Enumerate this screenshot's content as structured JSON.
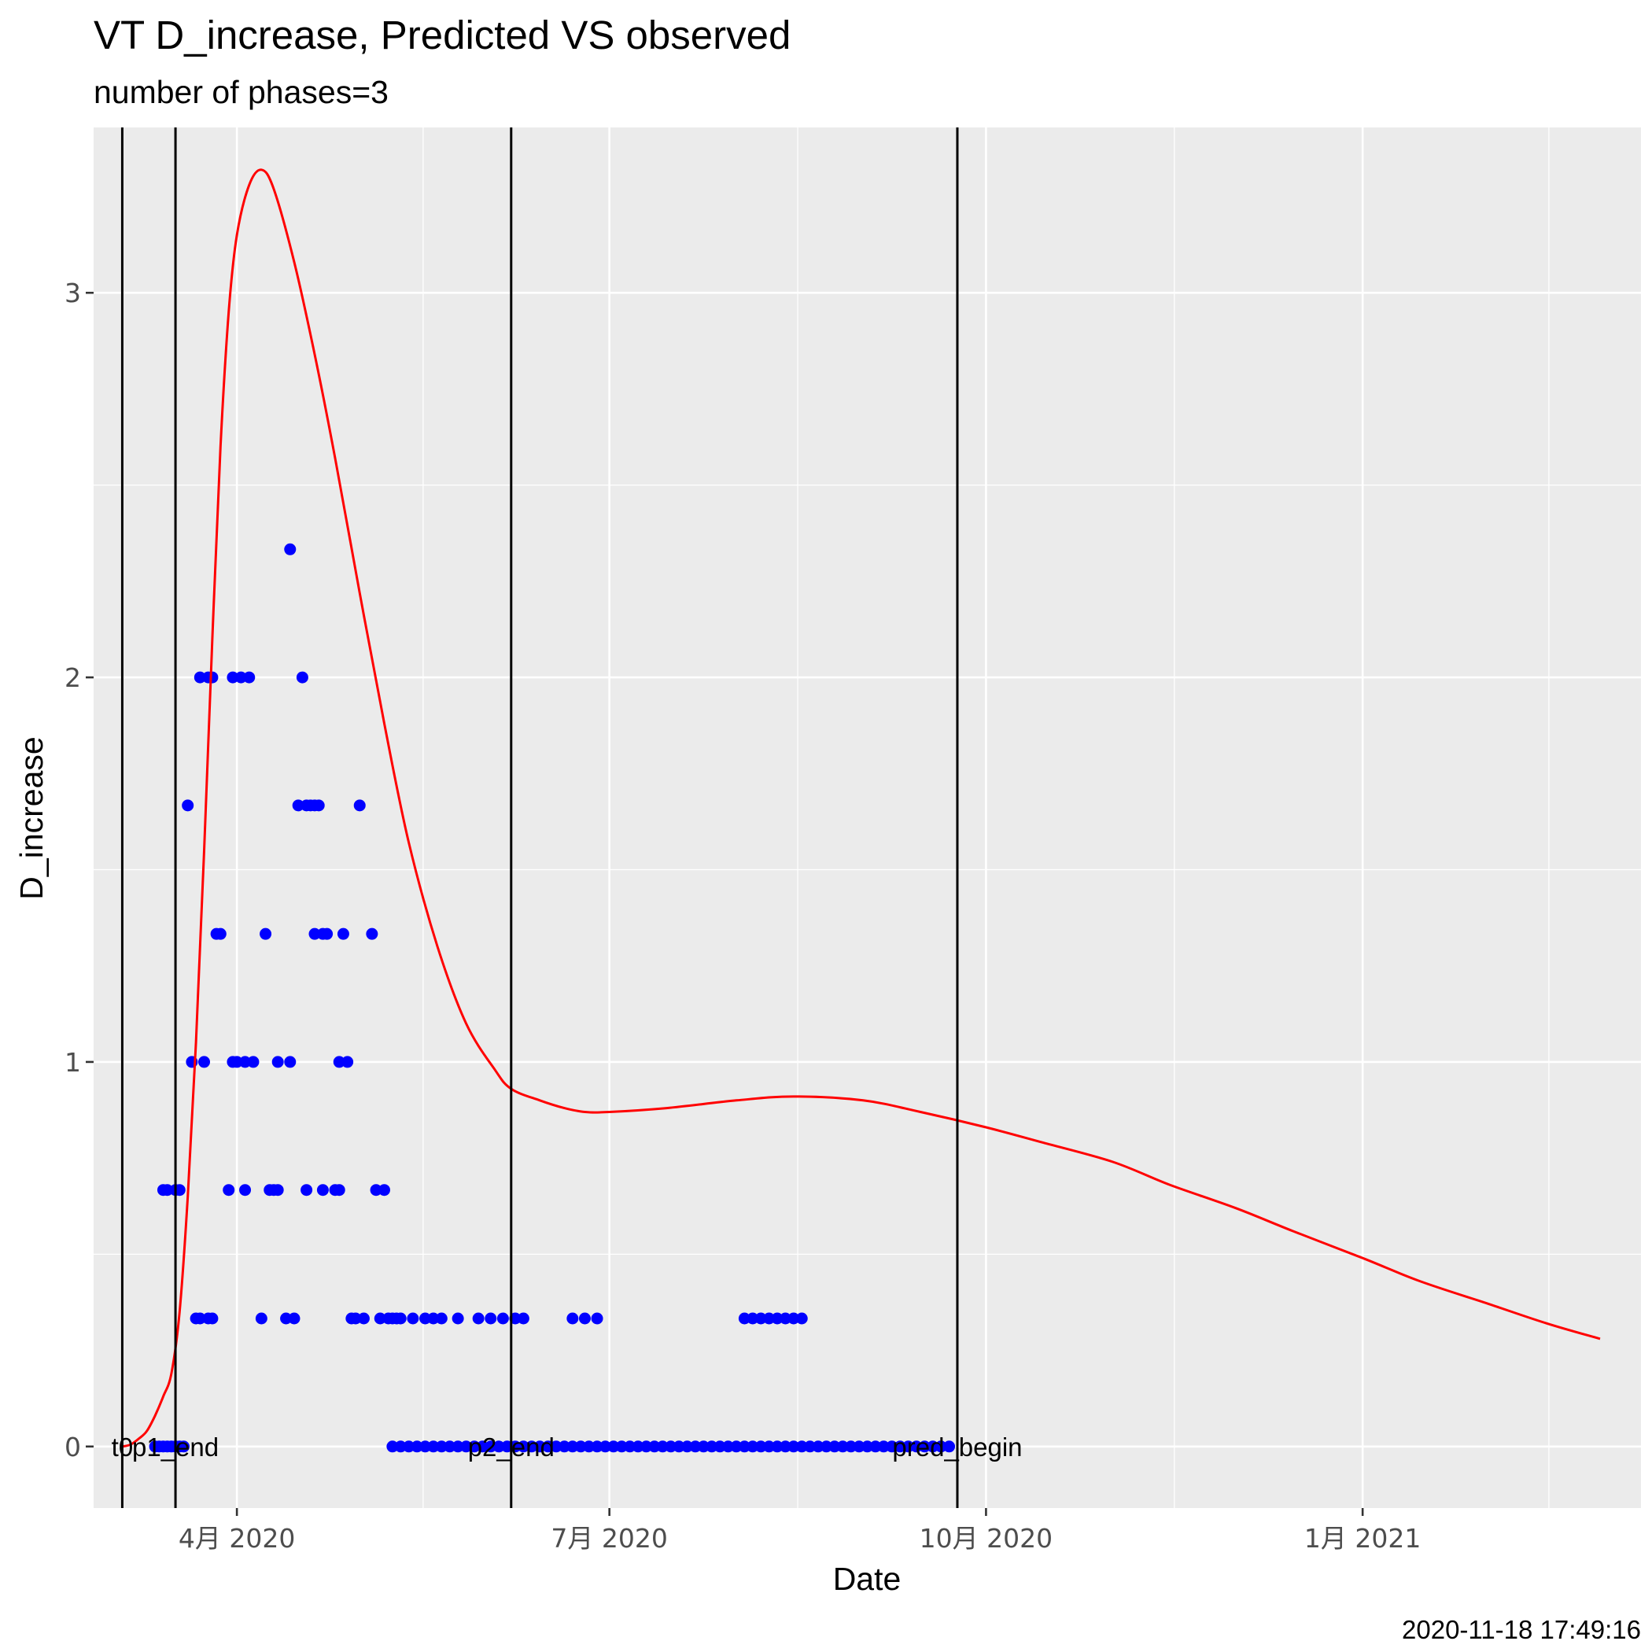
{
  "chart_data": {
    "type": "line",
    "title": "VT D_increase, Predicted VS observed",
    "subtitle": "number of phases=3",
    "xlabel": "Date",
    "ylabel": "D_increase",
    "caption": "2020-11-18 17:49:16",
    "x_type": "date",
    "xlim": [
      "2020-02-26",
      "2021-03-10"
    ],
    "ylim": [
      -0.16,
      3.43
    ],
    "grid": true,
    "panel_background": "#ebebeb",
    "grid_color": "#ffffff",
    "x_ticks": [
      {
        "date": "2020-04-01",
        "label": "4月 2020"
      },
      {
        "date": "2020-07-01",
        "label": "7月 2020"
      },
      {
        "date": "2020-10-01",
        "label": "10月 2020"
      },
      {
        "date": "2021-01-01",
        "label": "1月 2021"
      }
    ],
    "y_ticks": [
      {
        "value": 0,
        "label": "0"
      },
      {
        "value": 1,
        "label": "1"
      },
      {
        "value": 2,
        "label": "2"
      },
      {
        "value": 3,
        "label": "3"
      }
    ],
    "vlines": [
      {
        "date": "2020-03-04",
        "label": "t0"
      },
      {
        "date": "2020-03-17",
        "label": "p1_end"
      },
      {
        "date": "2020-06-07",
        "label": "p2_end"
      },
      {
        "date": "2020-09-24",
        "label": "pred_begin"
      }
    ],
    "series": [
      {
        "name": "predicted",
        "kind": "line",
        "color": "#ff0000",
        "points": [
          [
            "2020-03-04",
            0.0
          ],
          [
            "2020-03-06",
            0.005
          ],
          [
            "2020-03-08",
            0.02
          ],
          [
            "2020-03-10",
            0.04
          ],
          [
            "2020-03-12",
            0.08
          ],
          [
            "2020-03-14",
            0.13
          ],
          [
            "2020-03-16",
            0.19
          ],
          [
            "2020-03-18",
            0.35
          ],
          [
            "2020-03-20",
            0.65
          ],
          [
            "2020-03-22",
            1.05
          ],
          [
            "2020-03-24",
            1.55
          ],
          [
            "2020-03-26",
            2.1
          ],
          [
            "2020-03-28",
            2.6
          ],
          [
            "2020-03-30",
            2.95
          ],
          [
            "2020-04-01",
            3.15
          ],
          [
            "2020-04-04",
            3.28
          ],
          [
            "2020-04-07",
            3.32
          ],
          [
            "2020-04-10",
            3.27
          ],
          [
            "2020-04-15",
            3.08
          ],
          [
            "2020-04-20",
            2.84
          ],
          [
            "2020-04-25",
            2.57
          ],
          [
            "2020-05-01",
            2.22
          ],
          [
            "2020-05-07",
            1.88
          ],
          [
            "2020-05-13",
            1.57
          ],
          [
            "2020-05-20",
            1.3
          ],
          [
            "2020-05-27",
            1.1
          ],
          [
            "2020-06-03",
            0.98
          ],
          [
            "2020-06-07",
            0.93
          ],
          [
            "2020-06-14",
            0.9
          ],
          [
            "2020-06-20",
            0.88
          ],
          [
            "2020-06-25",
            0.87
          ],
          [
            "2020-07-01",
            0.87
          ],
          [
            "2020-07-15",
            0.88
          ],
          [
            "2020-08-01",
            0.9
          ],
          [
            "2020-08-15",
            0.91
          ],
          [
            "2020-09-01",
            0.9
          ],
          [
            "2020-09-15",
            0.87
          ],
          [
            "2020-10-01",
            0.83
          ],
          [
            "2020-10-15",
            0.79
          ],
          [
            "2020-11-01",
            0.74
          ],
          [
            "2020-11-15",
            0.68
          ],
          [
            "2020-12-01",
            0.62
          ],
          [
            "2020-12-15",
            0.56
          ],
          [
            "2021-01-01",
            0.49
          ],
          [
            "2021-01-15",
            0.43
          ],
          [
            "2021-02-01",
            0.37
          ],
          [
            "2021-02-15",
            0.32
          ],
          [
            "2021-02-28",
            0.28
          ]
        ]
      },
      {
        "name": "observed",
        "kind": "points",
        "color": "#0000ff",
        "points": [
          [
            "2020-03-12",
            0
          ],
          [
            "2020-03-13",
            0
          ],
          [
            "2020-03-14",
            0
          ],
          [
            "2020-03-15",
            0
          ],
          [
            "2020-03-16",
            0
          ],
          [
            "2020-03-17",
            0
          ],
          [
            "2020-03-18",
            0
          ],
          [
            "2020-03-19",
            0
          ],
          [
            "2020-03-14",
            0.667
          ],
          [
            "2020-03-15",
            0.667
          ],
          [
            "2020-03-17",
            0.667
          ],
          [
            "2020-03-18",
            0.667
          ],
          [
            "2020-03-20",
            1.667
          ],
          [
            "2020-03-21",
            1
          ],
          [
            "2020-03-24",
            1
          ],
          [
            "2020-03-22",
            0.333
          ],
          [
            "2020-03-23",
            0.333
          ],
          [
            "2020-03-25",
            0.333
          ],
          [
            "2020-03-26",
            0.333
          ],
          [
            "2020-03-23",
            2
          ],
          [
            "2020-03-25",
            2
          ],
          [
            "2020-03-26",
            2
          ],
          [
            "2020-03-27",
            1.333
          ],
          [
            "2020-03-28",
            1.333
          ],
          [
            "2020-03-30",
            0.667
          ],
          [
            "2020-03-31",
            1
          ],
          [
            "2020-04-01",
            1
          ],
          [
            "2020-04-03",
            1
          ],
          [
            "2020-04-05",
            1
          ],
          [
            "2020-03-31",
            2
          ],
          [
            "2020-04-02",
            2
          ],
          [
            "2020-04-04",
            2
          ],
          [
            "2020-04-03",
            0.667
          ],
          [
            "2020-04-07",
            0.333
          ],
          [
            "2020-04-08",
            1.333
          ],
          [
            "2020-04-09",
            0.667
          ],
          [
            "2020-04-10",
            0.667
          ],
          [
            "2020-04-11",
            0.667
          ],
          [
            "2020-04-11",
            1
          ],
          [
            "2020-04-13",
            0.333
          ],
          [
            "2020-04-14",
            1
          ],
          [
            "2020-04-14",
            2.333
          ],
          [
            "2020-04-15",
            0.333
          ],
          [
            "2020-04-16",
            1.667
          ],
          [
            "2020-04-17",
            2
          ],
          [
            "2020-04-18",
            0.667
          ],
          [
            "2020-04-18",
            1.667
          ],
          [
            "2020-04-19",
            1.667
          ],
          [
            "2020-04-20",
            1.667
          ],
          [
            "2020-04-20",
            1.333
          ],
          [
            "2020-04-21",
            1.667
          ],
          [
            "2020-04-22",
            0.667
          ],
          [
            "2020-04-22",
            1.333
          ],
          [
            "2020-04-23",
            1.333
          ],
          [
            "2020-04-25",
            0.667
          ],
          [
            "2020-04-26",
            0.667
          ],
          [
            "2020-04-26",
            1
          ],
          [
            "2020-04-27",
            1.333
          ],
          [
            "2020-04-28",
            1
          ],
          [
            "2020-04-29",
            0.333
          ],
          [
            "2020-04-30",
            0.333
          ],
          [
            "2020-05-01",
            1.667
          ],
          [
            "2020-05-02",
            0.333
          ],
          [
            "2020-05-04",
            1.333
          ],
          [
            "2020-05-05",
            0.667
          ],
          [
            "2020-05-06",
            0.333
          ],
          [
            "2020-05-07",
            0.667
          ],
          [
            "2020-05-08",
            0.333
          ],
          [
            "2020-05-09",
            0.333
          ],
          [
            "2020-05-10",
            0.333
          ],
          [
            "2020-05-11",
            0.333
          ],
          [
            "2020-05-14",
            0.333
          ],
          [
            "2020-05-17",
            0.333
          ],
          [
            "2020-05-19",
            0.333
          ],
          [
            "2020-05-21",
            0.333
          ],
          [
            "2020-05-25",
            0.333
          ],
          [
            "2020-05-30",
            0.333
          ],
          [
            "2020-06-02",
            0.333
          ],
          [
            "2020-06-05",
            0.333
          ],
          [
            "2020-06-08",
            0.333
          ],
          [
            "2020-06-10",
            0.333
          ],
          [
            "2020-06-22",
            0.333
          ],
          [
            "2020-06-25",
            0.333
          ],
          [
            "2020-06-28",
            0.333
          ],
          [
            "2020-08-03",
            0.333
          ],
          [
            "2020-08-05",
            0.333
          ],
          [
            "2020-08-07",
            0.333
          ],
          [
            "2020-08-09",
            0.333
          ],
          [
            "2020-08-11",
            0.333
          ],
          [
            "2020-08-13",
            0.333
          ],
          [
            "2020-08-15",
            0.333
          ],
          [
            "2020-08-17",
            0.333
          ],
          [
            "2020-05-09",
            0
          ],
          [
            "2020-05-11",
            0
          ],
          [
            "2020-05-13",
            0
          ],
          [
            "2020-05-15",
            0
          ],
          [
            "2020-05-17",
            0
          ],
          [
            "2020-05-19",
            0
          ],
          [
            "2020-05-21",
            0
          ],
          [
            "2020-05-23",
            0
          ],
          [
            "2020-05-25",
            0
          ],
          [
            "2020-05-27",
            0
          ],
          [
            "2020-05-29",
            0
          ],
          [
            "2020-05-31",
            0
          ],
          [
            "2020-06-02",
            0
          ],
          [
            "2020-06-04",
            0
          ],
          [
            "2020-06-06",
            0
          ],
          [
            "2020-06-08",
            0
          ],
          [
            "2020-06-10",
            0
          ],
          [
            "2020-06-12",
            0
          ],
          [
            "2020-06-14",
            0
          ],
          [
            "2020-06-16",
            0
          ],
          [
            "2020-06-18",
            0
          ],
          [
            "2020-06-20",
            0
          ],
          [
            "2020-06-22",
            0
          ],
          [
            "2020-06-24",
            0
          ],
          [
            "2020-06-26",
            0
          ],
          [
            "2020-06-28",
            0
          ],
          [
            "2020-06-30",
            0
          ],
          [
            "2020-07-02",
            0
          ],
          [
            "2020-07-04",
            0
          ],
          [
            "2020-07-06",
            0
          ],
          [
            "2020-07-08",
            0
          ],
          [
            "2020-07-10",
            0
          ],
          [
            "2020-07-12",
            0
          ],
          [
            "2020-07-14",
            0
          ],
          [
            "2020-07-16",
            0
          ],
          [
            "2020-07-18",
            0
          ],
          [
            "2020-07-20",
            0
          ],
          [
            "2020-07-22",
            0
          ],
          [
            "2020-07-24",
            0
          ],
          [
            "2020-07-26",
            0
          ],
          [
            "2020-07-28",
            0
          ],
          [
            "2020-07-30",
            0
          ],
          [
            "2020-08-01",
            0
          ],
          [
            "2020-08-03",
            0
          ],
          [
            "2020-08-05",
            0
          ],
          [
            "2020-08-07",
            0
          ],
          [
            "2020-08-09",
            0
          ],
          [
            "2020-08-11",
            0
          ],
          [
            "2020-08-13",
            0
          ],
          [
            "2020-08-15",
            0
          ],
          [
            "2020-08-17",
            0
          ],
          [
            "2020-08-19",
            0
          ],
          [
            "2020-08-21",
            0
          ],
          [
            "2020-08-23",
            0
          ],
          [
            "2020-08-25",
            0
          ],
          [
            "2020-08-27",
            0
          ],
          [
            "2020-08-29",
            0
          ],
          [
            "2020-08-31",
            0
          ],
          [
            "2020-09-02",
            0
          ],
          [
            "2020-09-04",
            0
          ],
          [
            "2020-09-06",
            0
          ],
          [
            "2020-09-08",
            0
          ],
          [
            "2020-09-10",
            0
          ],
          [
            "2020-09-12",
            0
          ],
          [
            "2020-09-14",
            0
          ],
          [
            "2020-09-16",
            0
          ],
          [
            "2020-09-18",
            0
          ],
          [
            "2020-09-20",
            0
          ],
          [
            "2020-09-22",
            0
          ]
        ]
      }
    ]
  }
}
